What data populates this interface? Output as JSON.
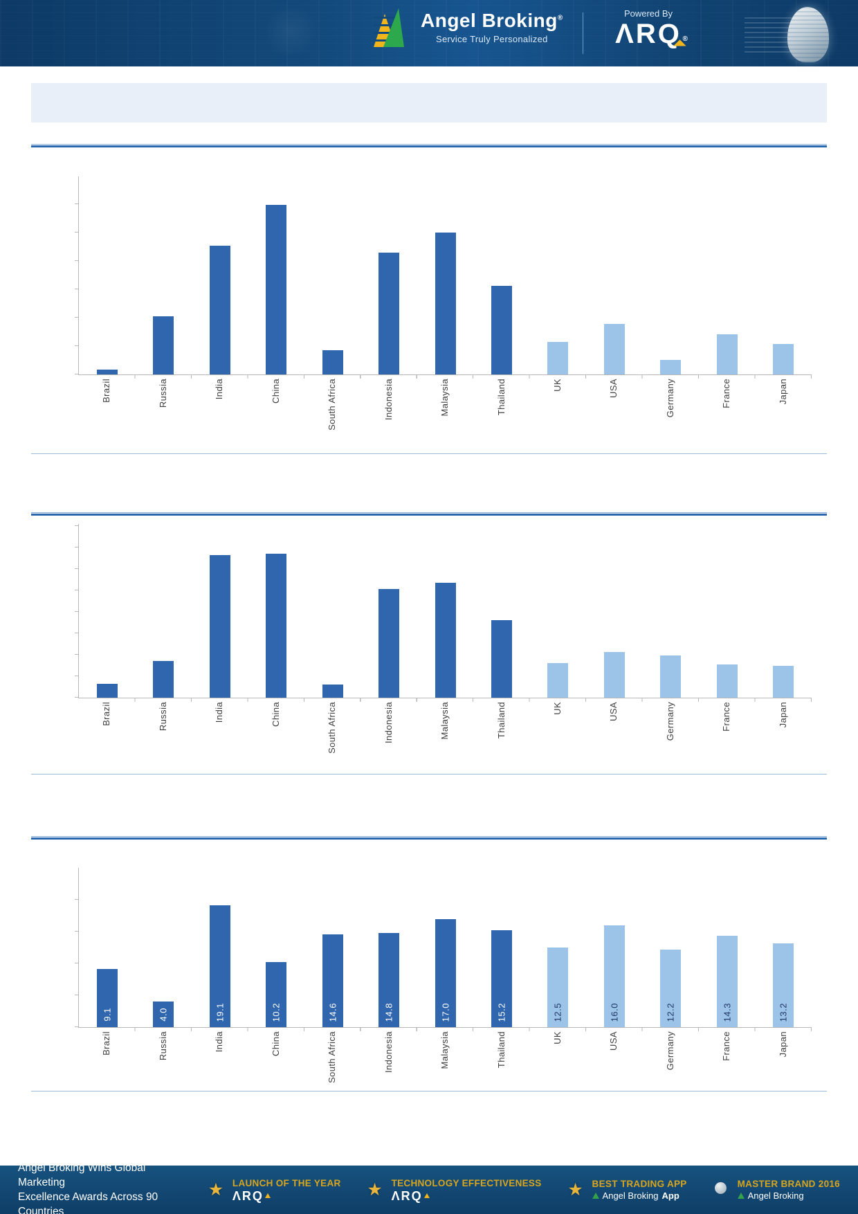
{
  "header": {
    "brand": "Angel Broking",
    "reg": "®",
    "tagline": "Service Truly Personalized",
    "powered_by": "Powered By",
    "arq": "ΛRQ",
    "arq_reg": "®"
  },
  "title_band": {
    "text": ""
  },
  "colors": {
    "bar_dark": "#2f66ae",
    "bar_light": "#9cc3e8",
    "rule_blue": "#2a66b0",
    "separator_blue": "#9bb9d9",
    "axis_grey": "#b7b7b7",
    "header_bg": "#134a7c",
    "gold": "#d9a51d",
    "title_band_bg": "#e9eff8",
    "logo_green": "#2ea84c",
    "logo_gold": "#f2b51c"
  },
  "chart_data": [
    {
      "type": "bar",
      "title": "",
      "categories": [
        "Brazil",
        "Russia",
        "India",
        "China",
        "South Africa",
        "Indonesia",
        "Malaysia",
        "Thailand",
        "UK",
        "USA",
        "Germany",
        "France",
        "Japan"
      ],
      "values": [
        2.4,
        29.4,
        65.0,
        85.7,
        12.2,
        61.5,
        71.7,
        44.8,
        16.4,
        25.5,
        7.3,
        20.3,
        15.4
      ],
      "ylim": [
        0,
        100
      ],
      "ylabel": "",
      "xlabel": "",
      "axis_tick_labels_visible": false,
      "dark_count": 8,
      "grid": false,
      "legend": false
    },
    {
      "type": "bar",
      "title": "",
      "categories": [
        "Brazil",
        "Russia",
        "India",
        "China",
        "South Africa",
        "Indonesia",
        "Malaysia",
        "Thailand",
        "UK",
        "USA",
        "Germany",
        "France",
        "Japan"
      ],
      "values": [
        8.0,
        21.0,
        82.0,
        83.0,
        7.5,
        62.5,
        66.0,
        44.5,
        20.0,
        26.5,
        24.5,
        19.0,
        18.5
      ],
      "ylim": [
        0,
        100
      ],
      "ylabel": "",
      "xlabel": "",
      "axis_tick_labels_visible": false,
      "dark_count": 8,
      "grid": false,
      "legend": false
    },
    {
      "type": "bar",
      "title": "",
      "categories": [
        "Brazil",
        "Russia",
        "India",
        "China",
        "South Africa",
        "Indonesia",
        "Malaysia",
        "Thailand",
        "UK",
        "USA",
        "Germany",
        "France",
        "Japan"
      ],
      "values": [
        9.1,
        4.0,
        19.1,
        10.2,
        14.6,
        14.8,
        17.0,
        15.2,
        12.5,
        16.0,
        12.2,
        14.3,
        13.2
      ],
      "data_labels": [
        "9.1",
        "4.0",
        "19.1",
        "10.2",
        "14.6",
        "14.8",
        "17.0",
        "15.2",
        "12.5",
        "16.0",
        "12.2",
        "14.3",
        "13.2"
      ],
      "ylim": [
        0,
        25
      ],
      "ylabel": "",
      "xlabel": "",
      "axis_tick_labels_visible": false,
      "dark_count": 8,
      "grid": false,
      "legend": false
    }
  ],
  "footer": {
    "left_line1": "Angel Broking Wins Global Marketing",
    "left_line2": "Excellence Awards Across 90 Countries",
    "awards": [
      {
        "icon": "trophy-icon",
        "title": "LAUNCH OF THE YEAR",
        "subtitle": "ΛRQ"
      },
      {
        "icon": "trophy-icon",
        "title": "TECHNOLOGY EFFECTIVENESS",
        "subtitle": "ΛRQ"
      },
      {
        "icon": "trophy-icon",
        "title": "BEST TRADING APP",
        "subtitle_prefix": "Angel Broking",
        "subtitle_bold": "App"
      },
      {
        "icon": "globe-trophy-icon",
        "title": "MASTER BRAND 2016",
        "subtitle_prefix": "Angel Broking",
        "subtitle_bold": ""
      }
    ]
  }
}
